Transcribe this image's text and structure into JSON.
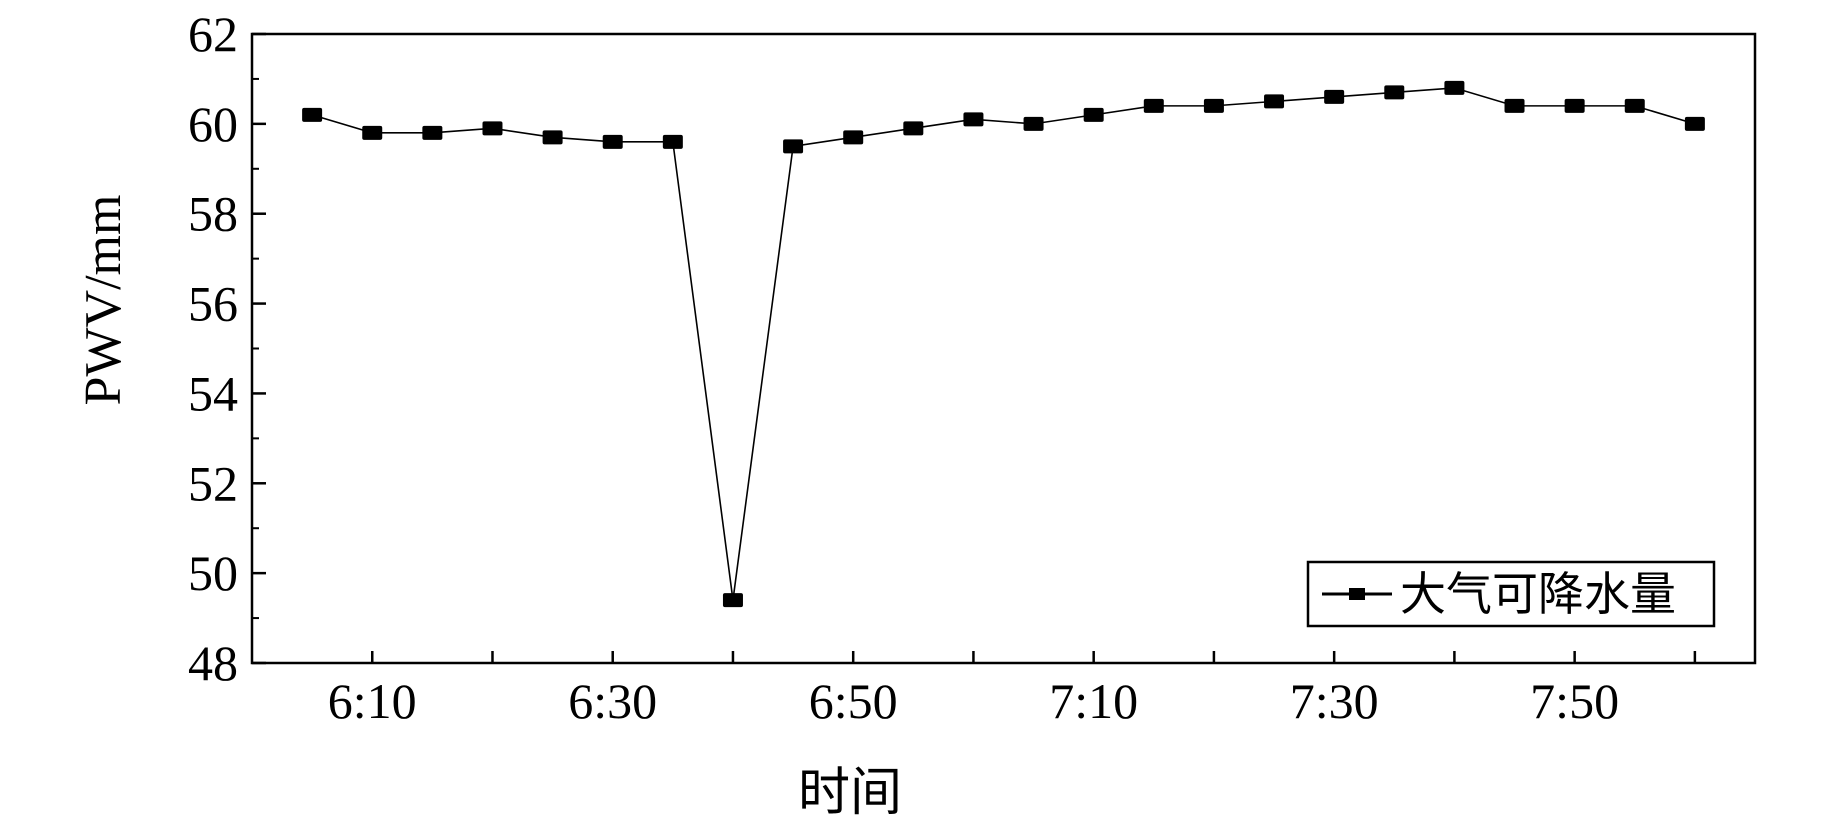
{
  "chart_data": {
    "type": "line",
    "title": "",
    "xlabel": "时间",
    "ylabel": "PWV/mm",
    "ylim": [
      48,
      62
    ],
    "yticks": [
      48,
      50,
      52,
      54,
      56,
      58,
      60,
      62
    ],
    "x_tick_labels": [
      "6:10",
      "6:30",
      "6:50",
      "7:10",
      "7:30",
      "7:50"
    ],
    "x_tick_values": [
      "6:10",
      "6:30",
      "6:50",
      "7:10",
      "7:30",
      "7:50"
    ],
    "x_minor_ticks": [
      "6:10",
      "6:20",
      "6:30",
      "6:40",
      "6:50",
      "7:00",
      "7:10",
      "7:20",
      "7:30",
      "7:40",
      "7:50",
      "8:00"
    ],
    "xlim": [
      "6:00",
      "8:05"
    ],
    "grid": false,
    "legend_position": "bottom-right",
    "series": [
      {
        "name": "大气可降水量",
        "x": [
          "6:05",
          "6:10",
          "6:15",
          "6:20",
          "6:25",
          "6:30",
          "6:35",
          "6:40",
          "6:45",
          "6:50",
          "6:55",
          "7:00",
          "7:05",
          "7:10",
          "7:15",
          "7:20",
          "7:25",
          "7:30",
          "7:35",
          "7:40",
          "7:45",
          "7:50",
          "7:55",
          "8:00"
        ],
        "values": [
          60.2,
          59.8,
          59.8,
          59.9,
          59.7,
          59.6,
          59.6,
          49.4,
          59.5,
          59.7,
          59.9,
          60.1,
          60.0,
          60.2,
          60.4,
          60.4,
          60.5,
          60.6,
          60.7,
          60.8,
          60.4,
          60.4,
          60.4,
          60.0
        ],
        "color": "#000000",
        "marker": "square"
      }
    ]
  }
}
